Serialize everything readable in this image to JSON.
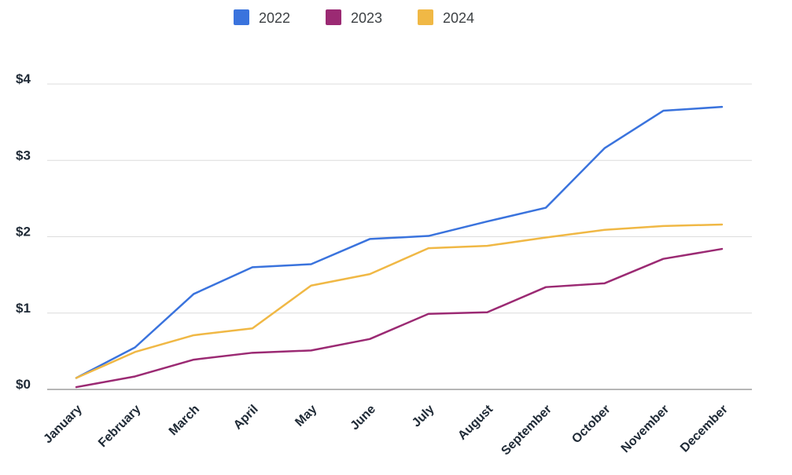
{
  "chart_data": {
    "type": "line",
    "title": "",
    "xlabel": "",
    "ylabel": "",
    "categories": [
      "January",
      "February",
      "March",
      "April",
      "May",
      "June",
      "July",
      "August",
      "September",
      "October",
      "November",
      "December"
    ],
    "ylim": [
      0,
      4
    ],
    "yticks": [
      0,
      1,
      2,
      3,
      4
    ],
    "ytick_labels": [
      "$0",
      "$1",
      "$2",
      "$3",
      "$4"
    ],
    "grid": true,
    "legend_position": "top-center",
    "series": [
      {
        "name": "2022",
        "color": "#3a73dd",
        "values": [
          0.15,
          0.55,
          1.25,
          1.6,
          1.64,
          1.97,
          2.01,
          2.2,
          2.38,
          3.16,
          3.65,
          3.7
        ]
      },
      {
        "name": "2023",
        "color": "#9b2a73",
        "values": [
          0.03,
          0.17,
          0.39,
          0.48,
          0.51,
          0.66,
          0.99,
          1.01,
          1.34,
          1.39,
          1.71,
          1.84
        ]
      },
      {
        "name": "2024",
        "color": "#f0b845",
        "values": [
          0.15,
          0.49,
          0.71,
          0.8,
          1.36,
          1.51,
          1.85,
          1.88,
          1.99,
          2.09,
          2.14,
          2.16
        ]
      }
    ]
  }
}
